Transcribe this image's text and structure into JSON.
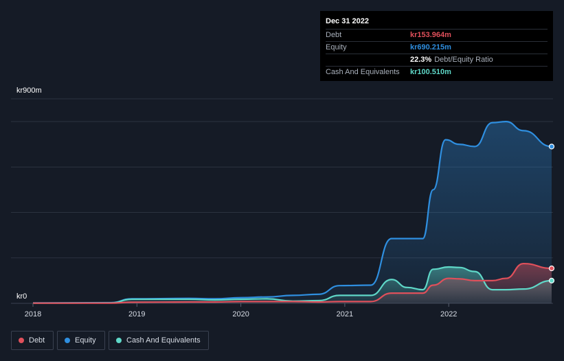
{
  "tooltip": {
    "date": "Dec 31 2022",
    "debt_label": "Debt",
    "debt_value": "kr153.964m",
    "equity_label": "Equity",
    "equity_value": "kr690.215m",
    "ratio_value": "22.3%",
    "ratio_label": "Debt/Equity Ratio",
    "cash_label": "Cash And Equivalents",
    "cash_value": "kr100.510m"
  },
  "colors": {
    "background": "#151b26",
    "debt": "#e0505b",
    "equity": "#2f8fe0",
    "cash": "#5fd8c8",
    "grid": "#2c3340"
  },
  "legend": [
    {
      "key": "debt",
      "label": "Debt"
    },
    {
      "key": "equity",
      "label": "Equity"
    },
    {
      "key": "cash",
      "label": "Cash And Equivalents"
    }
  ],
  "chart_data": {
    "type": "area",
    "title": "",
    "xlabel": "",
    "ylabel": "",
    "y_top_label": "kr900m",
    "y_bottom_label": "kr0",
    "ylim": [
      0,
      900
    ],
    "xlim": [
      2018.0,
      2022.99
    ],
    "x_ticks": [
      2018,
      2019,
      2020,
      2021,
      2022
    ],
    "x_tick_labels": [
      "2018",
      "2019",
      "2020",
      "2021",
      "2022"
    ],
    "grid": true,
    "series": [
      {
        "name": "Equity",
        "key": "equity",
        "x": [
          2018.0,
          2018.75,
          2018.95,
          2019.5,
          2019.75,
          2020.0,
          2020.25,
          2020.5,
          2020.75,
          2020.95,
          2021.25,
          2021.45,
          2021.6,
          2021.75,
          2021.85,
          2021.97,
          2022.1,
          2022.25,
          2022.42,
          2022.55,
          2022.72,
          2022.99
        ],
        "y": [
          2,
          3,
          20,
          22,
          20,
          25,
          28,
          35,
          40,
          78,
          80,
          285,
          285,
          285,
          500,
          720,
          700,
          690,
          795,
          800,
          760,
          690
        ]
      },
      {
        "name": "Cash And Equivalents",
        "key": "cash",
        "x": [
          2018.0,
          2018.75,
          2018.95,
          2019.5,
          2019.75,
          2020.0,
          2020.25,
          2020.5,
          2020.75,
          2020.95,
          2021.25,
          2021.45,
          2021.6,
          2021.75,
          2021.85,
          2022.0,
          2022.1,
          2022.25,
          2022.42,
          2022.55,
          2022.72,
          2022.99
        ],
        "y": [
          1,
          2,
          18,
          18,
          15,
          18,
          20,
          10,
          12,
          35,
          35,
          105,
          70,
          60,
          150,
          160,
          158,
          140,
          60,
          60,
          63,
          100
        ]
      },
      {
        "name": "Debt",
        "key": "debt",
        "x": [
          2018.0,
          2018.75,
          2018.95,
          2019.5,
          2019.75,
          2020.0,
          2020.25,
          2020.5,
          2020.75,
          2020.95,
          2021.25,
          2021.45,
          2021.6,
          2021.75,
          2021.85,
          2022.0,
          2022.1,
          2022.25,
          2022.42,
          2022.55,
          2022.72,
          2022.99
        ],
        "y": [
          1,
          1,
          5,
          6,
          6,
          8,
          8,
          8,
          6,
          8,
          8,
          45,
          45,
          45,
          80,
          110,
          108,
          100,
          100,
          110,
          175,
          154
        ]
      }
    ]
  }
}
